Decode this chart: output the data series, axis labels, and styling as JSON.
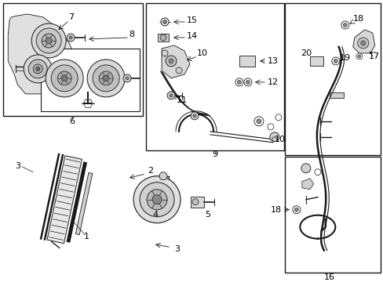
{
  "bg_color": "#ffffff",
  "line_color": "#1a1a1a",
  "gray_fill": "#d0d0d0",
  "light_gray": "#e8e8e8",
  "mid_gray": "#b0b0b0"
}
